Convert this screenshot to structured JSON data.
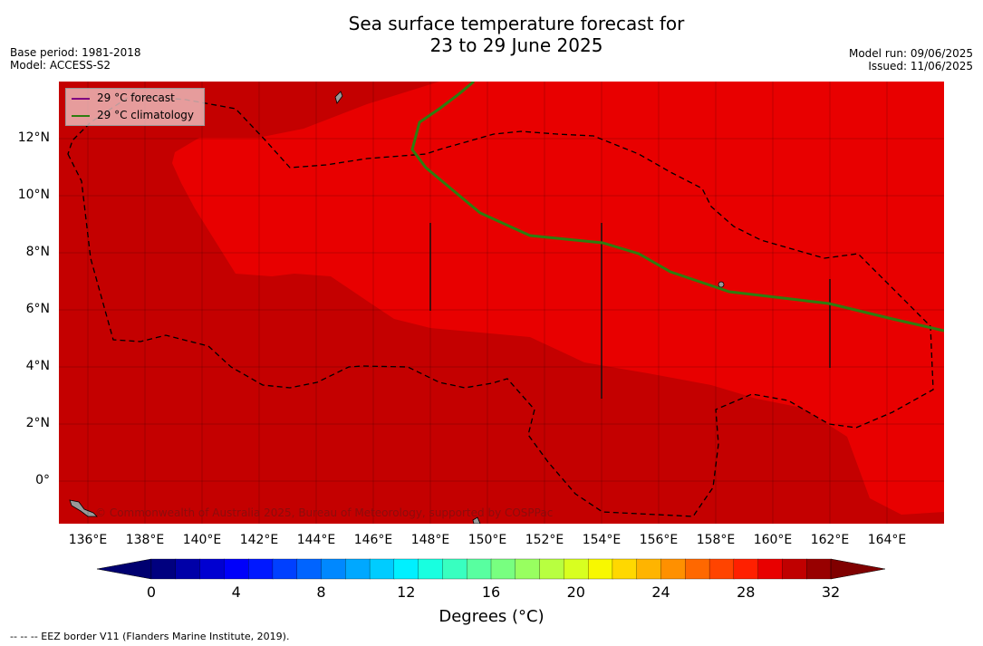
{
  "title_line1": "Sea surface temperature forecast for",
  "title_line2": "23 to 29 June 2025",
  "meta_left": [
    "Base period: 1981-2018",
    "Model: ACCESS-S2"
  ],
  "meta_right": [
    "Model run: 09/06/2025",
    "Issued: 11/06/2025"
  ],
  "legend": {
    "forecast_label": "29 °C  forecast",
    "forecast_color": "#800080",
    "climatology_label": "29 °C  climatology",
    "climatology_color": "#2e7d10"
  },
  "copyright": "© Commonwealth of Australia 2025, Bureau of Meteorology, supported by COSPPac",
  "lat_labels": [
    "12°N",
    "10°N",
    "8°N",
    "6°N",
    "4°N",
    "2°N",
    "0°"
  ],
  "lon_labels": [
    "136°E",
    "138°E",
    "140°E",
    "142°E",
    "144°E",
    "146°E",
    "148°E",
    "150°E",
    "152°E",
    "154°E",
    "156°E",
    "158°E",
    "160°E",
    "162°E",
    "164°E"
  ],
  "colorbar": {
    "tick_labels": [
      "0",
      "4",
      "8",
      "12",
      "16",
      "20",
      "24",
      "28",
      "32"
    ],
    "title": "Degrees (°C)",
    "colors": [
      "#00007f",
      "#0000a8",
      "#0000d1",
      "#0000fa",
      "#0018ff",
      "#0040ff",
      "#0064ff",
      "#0088ff",
      "#00a8ff",
      "#00ccff",
      "#00f0ff",
      "#18ffe0",
      "#38ffc0",
      "#58ffa0",
      "#78ff80",
      "#98ff60",
      "#b8ff40",
      "#d8ff20",
      "#f8f800",
      "#ffd800",
      "#ffb400",
      "#ff9000",
      "#ff6800",
      "#ff4400",
      "#ff2000",
      "#e80000",
      "#c00000",
      "#980000"
    ],
    "under_color": "#000070",
    "over_color": "#800000"
  },
  "map_colors": {
    "base": "#c40000",
    "warm": "#e80000",
    "land": "#999999"
  },
  "footnote": "--  --  -- EEZ border V11 (Flanders Marine Institute, 2019)."
}
